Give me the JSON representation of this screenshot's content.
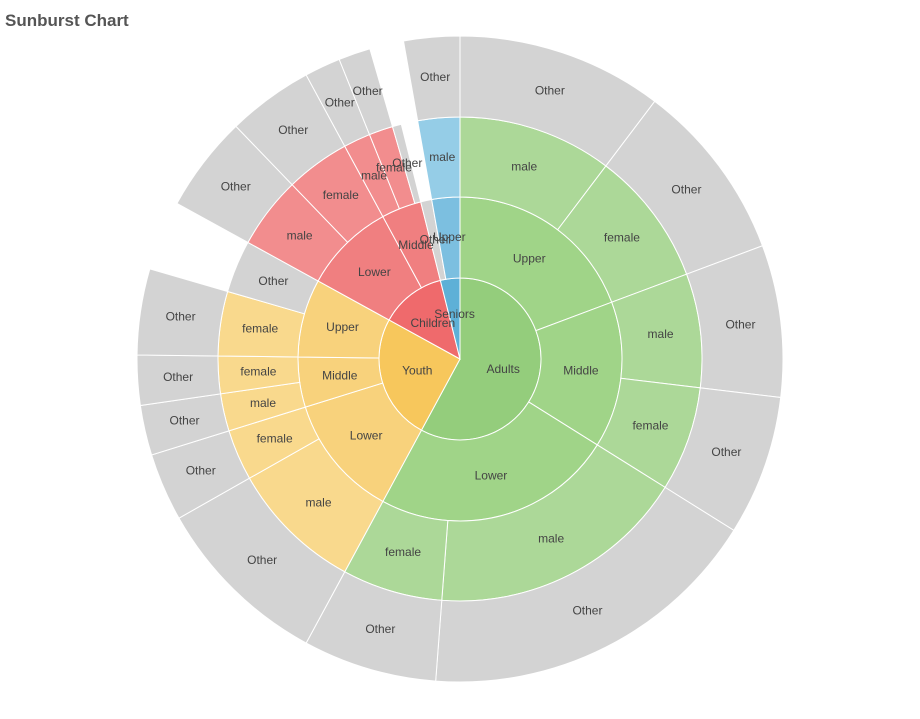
{
  "chart_data": {
    "type": "sunburst",
    "title": "Sunburst Chart",
    "colors": {
      "Adults": [
        "#94cd7c",
        "#a0d488",
        "#acd898"
      ],
      "Youth": [
        "#f7c75c",
        "#f8d27c",
        "#f9d98d"
      ],
      "Children": [
        "#ef6a6c",
        "#f07f80",
        "#f28d8e"
      ],
      "Seniors": [
        "#5eb0d7",
        "#7cbfe0",
        "#95cde7"
      ],
      "Other": "#d3d3d3",
      "stroke": "#ffffff"
    },
    "root": [
      {
        "name": "Adults",
        "value": 57.9,
        "children": [
          {
            "name": "Upper",
            "value": 19.3,
            "children": [
              {
                "name": "male",
                "value": 10.3,
                "children": [
                  {
                    "name": "Other",
                    "value": 10.3
                  }
                ]
              },
              {
                "name": "female",
                "value": 9.0,
                "children": [
                  {
                    "name": "Other",
                    "value": 9.0
                  }
                ]
              }
            ]
          },
          {
            "name": "Middle",
            "value": 14.6,
            "children": [
              {
                "name": "male",
                "value": 7.6,
                "children": [
                  {
                    "name": "Other",
                    "value": 7.6
                  }
                ]
              },
              {
                "name": "female",
                "value": 7.0,
                "children": [
                  {
                    "name": "Other",
                    "value": 7.0
                  }
                ]
              }
            ]
          },
          {
            "name": "Lower",
            "value": 24.0,
            "children": [
              {
                "name": "male",
                "value": 17.3,
                "children": [
                  {
                    "name": "Other",
                    "value": 17.3
                  }
                ]
              },
              {
                "name": "female",
                "value": 6.7,
                "children": [
                  {
                    "name": "Other",
                    "value": 6.7
                  }
                ]
              }
            ]
          }
        ]
      },
      {
        "name": "Youth",
        "value": 25.1,
        "children": [
          {
            "name": "Lower",
            "value": 12.3,
            "children": [
              {
                "name": "male",
                "value": 8.9,
                "children": [
                  {
                    "name": "Other",
                    "value": 8.9
                  }
                ]
              },
              {
                "name": "female",
                "value": 3.4,
                "children": [
                  {
                    "name": "Other",
                    "value": 3.4
                  }
                ]
              }
            ]
          },
          {
            "name": "Middle",
            "value": 5.0,
            "children": [
              {
                "name": "male",
                "value": 2.5,
                "children": [
                  {
                    "name": "Other",
                    "value": 2.5
                  }
                ]
              },
              {
                "name": "female",
                "value": 2.5,
                "children": [
                  {
                    "name": "Other",
                    "value": 2.5
                  }
                ]
              }
            ]
          },
          {
            "name": "Upper",
            "value": 7.8,
            "children": [
              {
                "name": "female",
                "value": 4.3,
                "children": [
                  {
                    "name": "Other",
                    "value": 4.3
                  }
                ]
              },
              {
                "name": "Other",
                "value": 3.5
              }
            ]
          }
        ]
      },
      {
        "name": "Children",
        "value": 13.1,
        "children": [
          {
            "name": "Lower",
            "value": 9.1,
            "children": [
              {
                "name": "male",
                "value": 4.8,
                "children": [
                  {
                    "name": "Other",
                    "value": 4.8
                  }
                ]
              },
              {
                "name": "female",
                "value": 4.3,
                "children": [
                  {
                    "name": "Other",
                    "value": 4.3
                  }
                ]
              }
            ]
          },
          {
            "name": "Middle",
            "value": 4.0,
            "children": [
              {
                "name": "male",
                "value": 1.8,
                "children": [
                  {
                    "name": "Other",
                    "value": 1.8
                  }
                ]
              },
              {
                "name": "female",
                "value": 1.6,
                "children": [
                  {
                    "name": "Other",
                    "value": 1.6
                  }
                ]
              },
              {
                "name": "Other",
                "value": 0.6
              }
            ]
          }
        ]
      },
      {
        "name": "Seniors",
        "value": 3.9,
        "children": [
          {
            "name": "Other",
            "value": 1.1
          },
          {
            "name": "Upper",
            "value": 2.8,
            "children": [
              {
                "name": "male",
                "value": 2.8,
                "children": [
                  {
                    "name": "Other",
                    "value": 2.8
                  }
                ]
              }
            ]
          }
        ]
      }
    ]
  }
}
